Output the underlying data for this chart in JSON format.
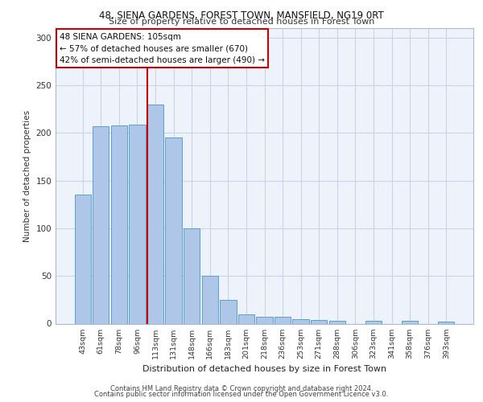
{
  "title1": "48, SIENA GARDENS, FOREST TOWN, MANSFIELD, NG19 0RT",
  "title2": "Size of property relative to detached houses in Forest Town",
  "xlabel": "Distribution of detached houses by size in Forest Town",
  "ylabel": "Number of detached properties",
  "annotation_line1": "48 SIENA GARDENS: 105sqm",
  "annotation_line2": "← 57% of detached houses are smaller (670)",
  "annotation_line3": "42% of semi-detached houses are larger (490) →",
  "footer1": "Contains HM Land Registry data © Crown copyright and database right 2024.",
  "footer2": "Contains public sector information licensed under the Open Government Licence v3.0.",
  "categories": [
    "43sqm",
    "61sqm",
    "78sqm",
    "96sqm",
    "113sqm",
    "131sqm",
    "148sqm",
    "166sqm",
    "183sqm",
    "201sqm",
    "218sqm",
    "236sqm",
    "253sqm",
    "271sqm",
    "288sqm",
    "306sqm",
    "323sqm",
    "341sqm",
    "358sqm",
    "376sqm",
    "393sqm"
  ],
  "values": [
    135,
    207,
    208,
    209,
    230,
    195,
    100,
    50,
    25,
    10,
    7,
    7,
    5,
    4,
    3,
    0,
    3,
    0,
    3,
    0,
    2
  ],
  "bar_color": "#aec6e8",
  "bar_edge_color": "#5a9fd4",
  "red_line_index": 4,
  "ylim": [
    0,
    310
  ],
  "yticks": [
    0,
    50,
    100,
    150,
    200,
    250,
    300
  ],
  "red_line_color": "#cc0000",
  "bg_color": "#eef2fb",
  "grid_color": "#c8d4e8"
}
